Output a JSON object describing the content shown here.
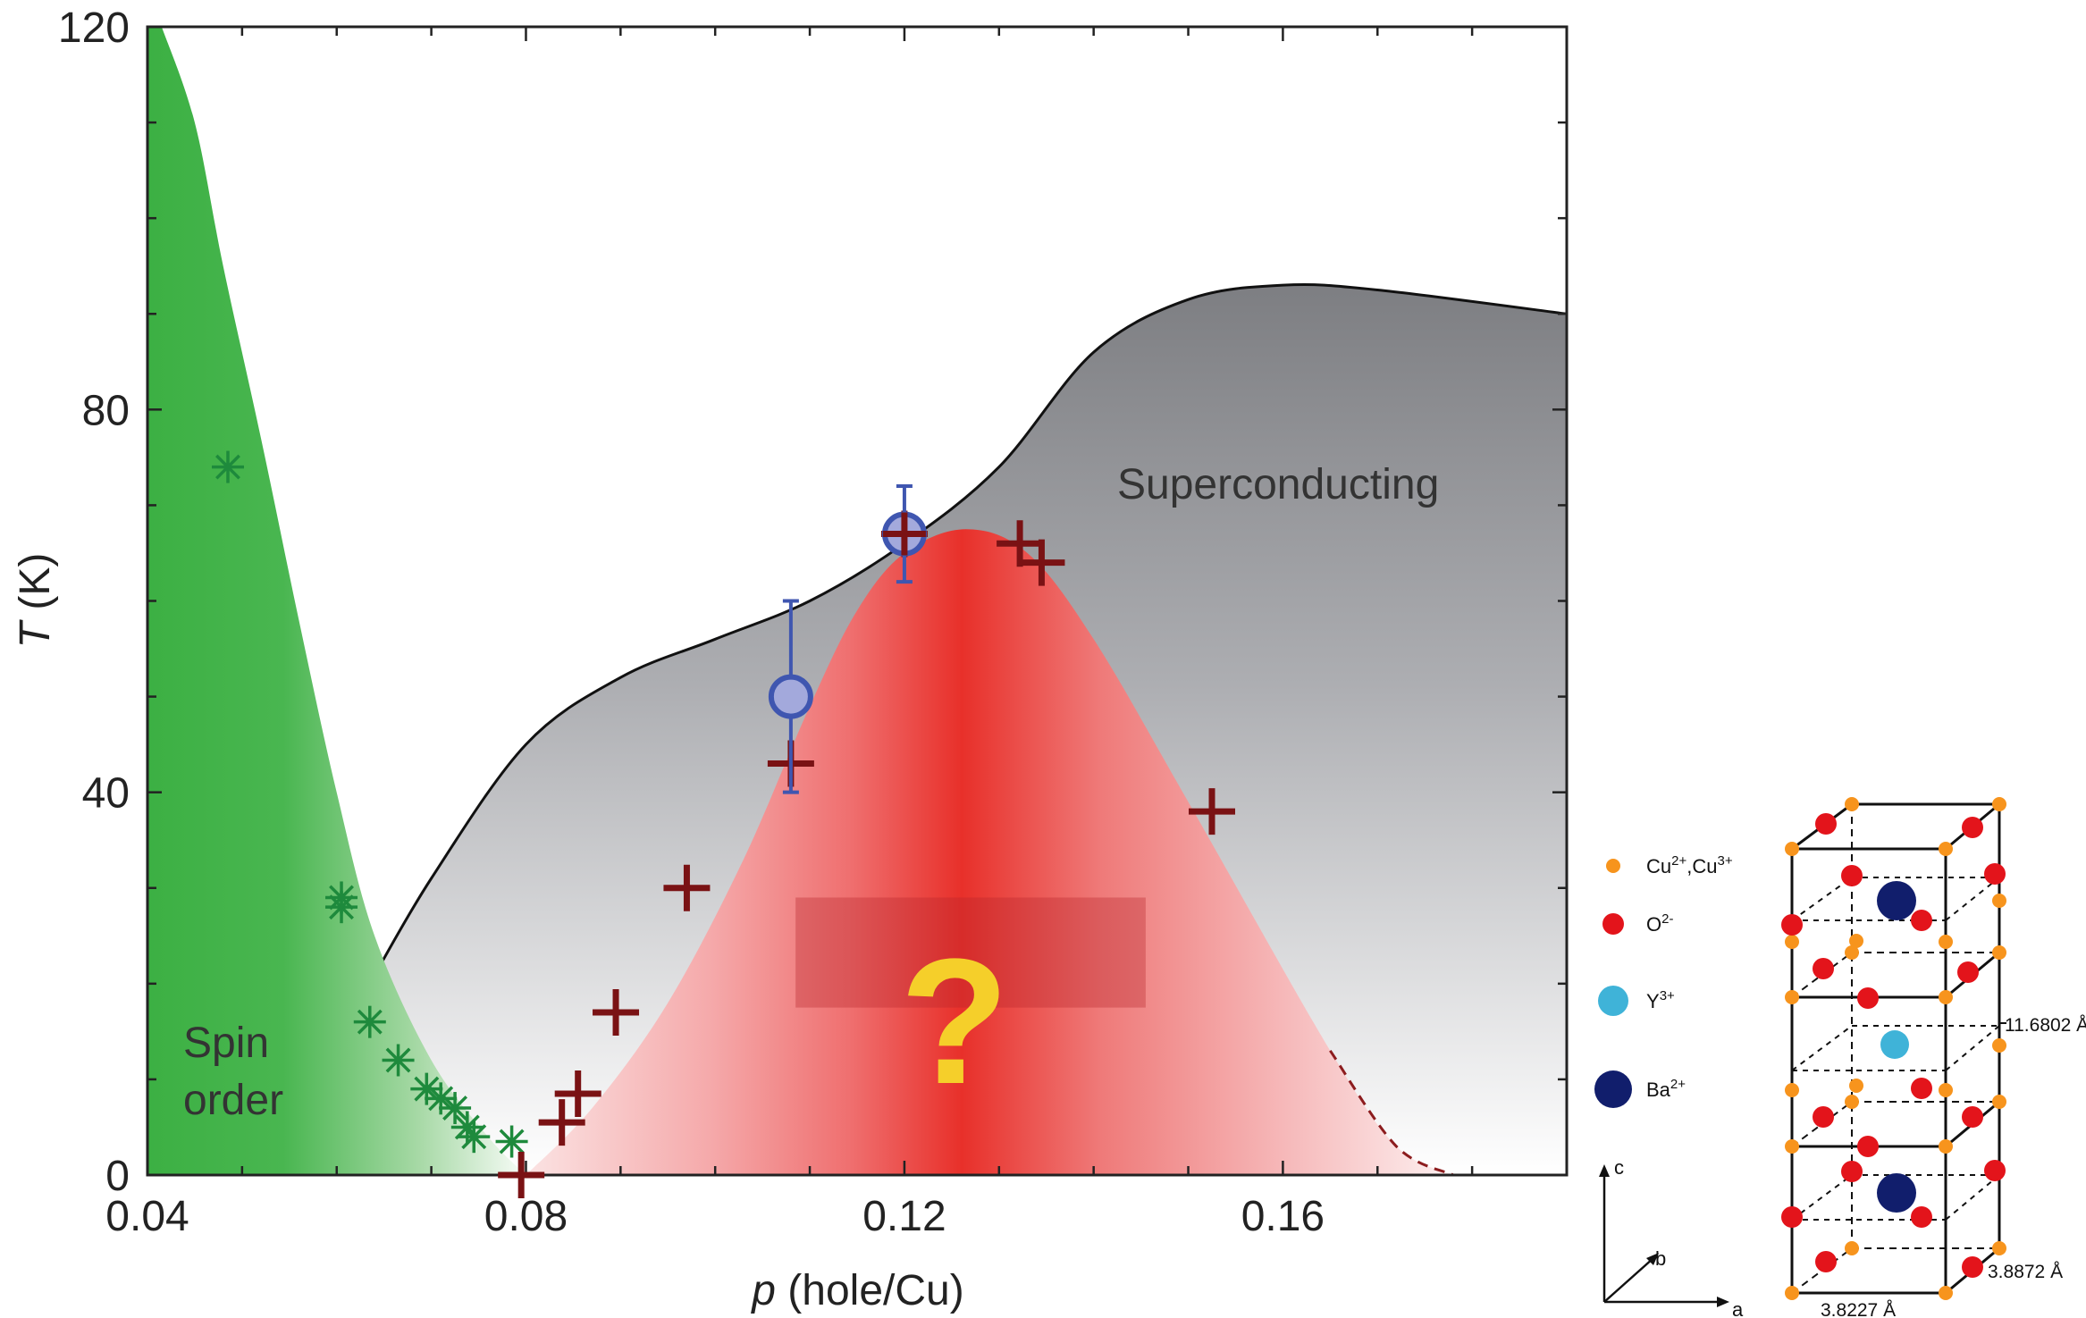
{
  "chart_data": {
    "type": "scatter",
    "xlabel_italic": "p",
    "xlabel_rest": " (hole/Cu)",
    "ylabel_italic": "T",
    "ylabel_rest": " (K)",
    "xlim": [
      0.04,
      0.19
    ],
    "ylim": [
      0,
      120
    ],
    "x_ticks": [
      "0.04",
      "0.08",
      "0.12",
      "0.16"
    ],
    "x_tick_values": [
      0.04,
      0.08,
      0.12,
      0.16
    ],
    "y_ticks": [
      "0",
      "40",
      "80",
      "120"
    ],
    "y_tick_values": [
      0,
      40,
      80,
      120
    ],
    "region_labels": {
      "superconducting": "Superconducting",
      "spin_line1": "Spin",
      "spin_line2": "order",
      "question": "?"
    },
    "colors": {
      "spin_green": "#3cb043",
      "cdw_red": "#e8302a",
      "sc_gray": "#7d7e82",
      "plus_marker": "#7a1214",
      "star_marker": "#1e8a3c",
      "circle_marker": "#3f56b0",
      "circle_fill": "#a3a9dc"
    },
    "series": [
      {
        "marker": "star",
        "points": [
          [
            0.0485,
            74
          ],
          [
            0.0605,
            29
          ],
          [
            0.0605,
            28
          ],
          [
            0.0635,
            16
          ],
          [
            0.0665,
            12
          ],
          [
            0.0695,
            9
          ],
          [
            0.071,
            8
          ],
          [
            0.0725,
            7
          ],
          [
            0.0738,
            5
          ],
          [
            0.0745,
            4
          ],
          [
            0.0785,
            3.5
          ]
        ]
      },
      {
        "marker": "plus",
        "points": [
          [
            0.12,
            67
          ],
          [
            0.1322,
            66
          ],
          [
            0.1345,
            64
          ],
          [
            0.108,
            43
          ],
          [
            0.1525,
            38
          ],
          [
            0.097,
            30
          ],
          [
            0.0895,
            17
          ],
          [
            0.0855,
            8.5
          ],
          [
            0.0838,
            5.5
          ],
          [
            0.0795,
            0
          ]
        ]
      },
      {
        "marker": "circle",
        "points": [
          {
            "x": 0.12,
            "y": 67,
            "yerr_low": 62,
            "yerr_high": 72
          },
          {
            "x": 0.108,
            "y": 50,
            "yerr_low": 40,
            "yerr_high": 60
          }
        ]
      }
    ],
    "spin_order_boundary": [
      [
        0.0415,
        120
      ],
      [
        0.045,
        110
      ],
      [
        0.048,
        95
      ],
      [
        0.052,
        77
      ],
      [
        0.056,
        58
      ],
      [
        0.06,
        40
      ],
      [
        0.064,
        25
      ],
      [
        0.07,
        12
      ],
      [
        0.076,
        4
      ],
      [
        0.08,
        0
      ]
    ],
    "superconducting_boundary": [
      [
        0.0635,
        20
      ],
      [
        0.07,
        31
      ],
      [
        0.08,
        45
      ],
      [
        0.09,
        52
      ],
      [
        0.1,
        56
      ],
      [
        0.11,
        60
      ],
      [
        0.12,
        66
      ],
      [
        0.13,
        74
      ],
      [
        0.14,
        86
      ],
      [
        0.15,
        91.5
      ],
      [
        0.16,
        93
      ],
      [
        0.17,
        92.5
      ],
      [
        0.19,
        90
      ]
    ],
    "charge_order_dome": [
      [
        0.08,
        0
      ],
      [
        0.087,
        7
      ],
      [
        0.095,
        18
      ],
      [
        0.103,
        33
      ],
      [
        0.11,
        49
      ],
      [
        0.115,
        59
      ],
      [
        0.12,
        65
      ],
      [
        0.1265,
        67.5
      ],
      [
        0.133,
        65
      ],
      [
        0.14,
        56
      ],
      [
        0.15,
        39
      ],
      [
        0.165,
        13
      ],
      [
        0.172,
        3
      ],
      [
        0.178,
        0
      ]
    ]
  },
  "crystal_structure": {
    "legend": [
      {
        "label": "Cu",
        "sup": "2+",
        "label2": ",Cu",
        "sup2": "3+",
        "color": "#f7941d",
        "marker": "small-circle"
      },
      {
        "label": "O",
        "sup": "2-",
        "label2": "",
        "sup2": "",
        "color": "#e3141b",
        "marker": "circle"
      },
      {
        "label": "Y",
        "sup": "3+",
        "label2": "",
        "sup2": "",
        "color": "#3fb3d8",
        "marker": "circle"
      },
      {
        "label": "Ba",
        "sup": "2+",
        "label2": "",
        "sup2": "",
        "color": "#111e6c",
        "marker": "large-circle"
      }
    ],
    "axis_labels": {
      "c": "c",
      "b": "b",
      "a": "a"
    },
    "dimensions": {
      "c": "11.6802 Å",
      "b": "3.8872 Å",
      "a": "3.8227 Å"
    }
  }
}
